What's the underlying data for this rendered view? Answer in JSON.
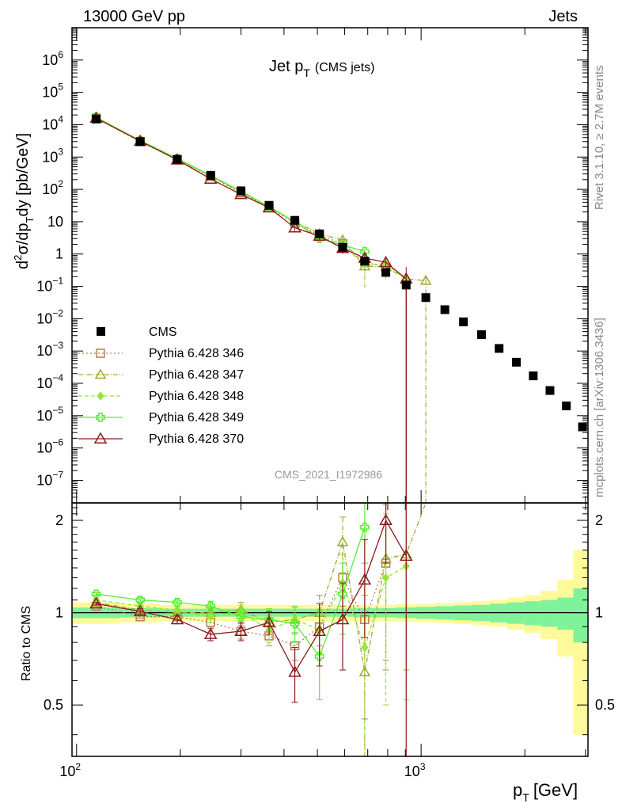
{
  "header": {
    "left": "13000 GeV pp",
    "right": "Jets"
  },
  "side_labels": {
    "rivet": "Rivet 3.1.10, ≥ 2.7M events",
    "mcplots": "mcplots.cern.ch [arXiv:1306.3436]"
  },
  "chart_data": {
    "type": "scatter",
    "title_main": "Jet p",
    "title_sub": "T",
    "title_suffix": "(CMS jets)",
    "analysis_id": "CMS_2021_I1972986",
    "xlabel_main": "p",
    "xlabel_sub": "T",
    "xlabel_unit": "[GeV]",
    "ylabel": "d²σ/dp_T dy [pb/GeV]",
    "ratio_ylabel": "Ratio to CMS",
    "x_scale": "log",
    "y_scale": "log",
    "xlim": [
      97,
      3050
    ],
    "ylim": [
      2e-08,
      10000000.0
    ],
    "ratio_ylim": [
      0.34,
      2.28
    ],
    "x_tick_labels": [
      "10",
      "10"
    ],
    "x_tick_exps": [
      "2",
      "3"
    ],
    "y_tick_labels": [
      {
        "m": "10",
        "e": "6",
        "v": 1000000.0
      },
      {
        "m": "10",
        "e": "5",
        "v": 100000.0
      },
      {
        "m": "10",
        "e": "4",
        "v": 10000.0
      },
      {
        "m": "10",
        "e": "3",
        "v": 1000.0
      },
      {
        "m": "10",
        "e": "2",
        "v": 100.0
      },
      {
        "m": "10",
        "e": "",
        "v": 10
      },
      {
        "m": "1",
        "e": "",
        "v": 1
      },
      {
        "m": "10",
        "e": "−1",
        "v": 0.1
      },
      {
        "m": "10",
        "e": "−2",
        "v": 0.01
      },
      {
        "m": "10",
        "e": "−3",
        "v": 0.001
      },
      {
        "m": "10",
        "e": "−4",
        "v": 0.0001
      },
      {
        "m": "10",
        "e": "−5",
        "v": 1e-05
      },
      {
        "m": "10",
        "e": "−6",
        "v": 1e-06
      },
      {
        "m": "10",
        "e": "−7",
        "v": 1e-07
      }
    ],
    "ratio_tick_labels": [
      "0.5",
      "1",
      "2"
    ],
    "legend_position": "bottom-left",
    "colors": {
      "cms": "#000000",
      "p346": "#b5804d",
      "p347": "#a3a832",
      "p348": "#9ae533",
      "p349": "#55ee33",
      "p370": "#8c1a1a",
      "band_inner": "#7ff29a",
      "band_outer": "#fffa99"
    },
    "cms": {
      "name": "CMS",
      "x": [
        114,
        153,
        196,
        245,
        300,
        362,
        430,
        507,
        592,
        686,
        790,
        905,
        1032,
        1172,
        1327,
        1497,
        1684,
        1890,
        2116,
        2366,
        2640,
        2941
      ],
      "y": [
        15000,
        3000,
        850,
        270,
        90,
        32,
        11,
        4.2,
        1.6,
        0.6,
        0.27,
        0.11,
        0.045,
        0.019,
        0.008,
        0.0032,
        0.0012,
        0.00045,
        0.00017,
        6e-05,
        2e-05,
        4.5e-06
      ]
    },
    "series": [
      {
        "name": "Pythia 6.428 346",
        "marker": "square",
        "dash": "2,3",
        "x": [
          114,
          153,
          196,
          245,
          300,
          362,
          430,
          507,
          592,
          686,
          790
        ],
        "y": [
          16000,
          3000,
          820,
          250,
          78,
          27,
          8.8,
          3.8,
          2.1,
          0.57,
          0.39
        ],
        "ratio": [
          1.05,
          0.97,
          0.97,
          0.93,
          0.87,
          0.84,
          0.78,
          0.9,
          1.3,
          0.95,
          1.45
        ],
        "ratio_err": [
          0.01,
          0.01,
          0.02,
          0.03,
          0.05,
          0.06,
          0.08,
          0.12,
          0.25,
          0.5,
          0.8
        ]
      },
      {
        "name": "Pythia 6.428 347",
        "marker": "triangle",
        "dash": "6,2,1,2",
        "x": [
          114,
          153,
          196,
          245,
          300,
          362,
          430,
          507,
          592,
          686,
          790,
          905,
          1032
        ],
        "y": [
          16000,
          3100,
          850,
          260,
          82,
          29,
          10,
          4.2,
          2.7,
          0.42,
          0.4,
          0.17,
          0.15
        ],
        "ratio": [
          1.08,
          1.02,
          1.0,
          1.0,
          1.02,
          0.93,
          0.95,
          1.0,
          1.7,
          0.64,
          1.5,
          1.55,
          3.5
        ],
        "ratio_err": [
          0.01,
          0.02,
          0.02,
          0.04,
          0.06,
          0.08,
          0.1,
          0.14,
          0.35,
          0.5,
          0.8,
          0.9,
          1.0
        ]
      },
      {
        "name": "Pythia 6.428 348",
        "marker": "diamond",
        "dash": "5,3",
        "x": [
          114,
          153,
          196,
          245,
          300,
          362,
          430,
          507,
          592,
          686,
          790,
          905
        ],
        "y": [
          16500,
          3150,
          870,
          260,
          90,
          27,
          10,
          3.3,
          1.9,
          0.46,
          0.5,
          0.16
        ],
        "ratio": [
          1.1,
          1.05,
          1.02,
          0.97,
          1.0,
          0.88,
          0.95,
          0.88,
          1.25,
          0.77,
          1.3,
          1.42
        ],
        "ratio_err": [
          0.01,
          0.02,
          0.03,
          0.04,
          0.06,
          0.08,
          0.1,
          0.14,
          0.3,
          0.5,
          0.8,
          0.9
        ]
      },
      {
        "name": "Pythia 6.428 349",
        "marker": "cross",
        "dash": "",
        "x": [
          114,
          153,
          196,
          245,
          300,
          362,
          430,
          507,
          592,
          686
        ],
        "y": [
          17000,
          3250,
          900,
          270,
          88,
          29,
          10,
          3.0,
          1.9,
          1.2
        ],
        "ratio": [
          1.15,
          1.1,
          1.08,
          1.05,
          0.97,
          0.95,
          0.92,
          0.72,
          1.15,
          1.9
        ],
        "ratio_err": [
          0.01,
          0.02,
          0.03,
          0.04,
          0.06,
          0.08,
          0.12,
          0.2,
          0.3,
          0.45
        ]
      },
      {
        "name": "Pythia 6.428 370",
        "marker": "triangle-open",
        "dash": "",
        "x": [
          114,
          153,
          196,
          245,
          300,
          362,
          430,
          507,
          592,
          686,
          790,
          905
        ],
        "y": [
          16000,
          3100,
          820,
          210,
          70,
          27,
          6.5,
          3.6,
          1.5,
          0.75,
          0.55,
          0.17
        ],
        "ratio": [
          1.07,
          1.01,
          0.95,
          0.85,
          0.87,
          0.93,
          0.64,
          0.87,
          0.95,
          1.28,
          2.0,
          1.53
        ],
        "ratio_err": [
          0.01,
          0.02,
          0.03,
          0.04,
          0.06,
          0.08,
          0.13,
          0.2,
          0.3,
          0.45,
          0.55,
          2.0
        ]
      }
    ],
    "bands": {
      "edges": [
        97,
        134,
        174,
        220,
        272,
        330,
        395,
        468,
        548,
        637,
        736,
        846,
        966,
        1099,
        1245,
        1406,
        1582,
        1776,
        1990,
        2225,
        2484,
        2766,
        3050
      ],
      "inner": [
        0.04,
        0.035,
        0.03,
        0.03,
        0.03,
        0.03,
        0.03,
        0.03,
        0.03,
        0.035,
        0.035,
        0.04,
        0.045,
        0.05,
        0.055,
        0.06,
        0.07,
        0.08,
        0.09,
        0.1,
        0.12,
        0.2
      ],
      "outer": [
        0.08,
        0.07,
        0.06,
        0.06,
        0.06,
        0.06,
        0.06,
        0.06,
        0.06,
        0.06,
        0.06,
        0.065,
        0.07,
        0.075,
        0.08,
        0.09,
        0.1,
        0.12,
        0.14,
        0.18,
        0.28,
        0.6
      ]
    }
  }
}
